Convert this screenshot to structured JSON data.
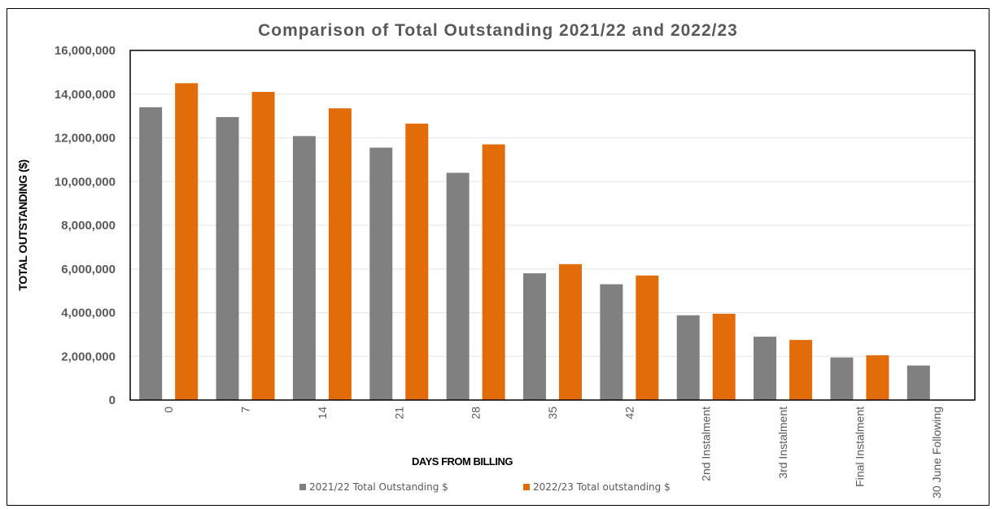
{
  "chart_data": {
    "type": "bar",
    "title": "Comparison of Total Outstanding 2021/22 and 2022/23",
    "xlabel": "DAYS FROM BILLING",
    "ylabel": "TOTAL OUTSTANDING ($)",
    "ylim": [
      0,
      16000000
    ],
    "yticks": [
      "0",
      "2,000,000",
      "4,000,000",
      "6,000,000",
      "8,000,000",
      "10,000,000",
      "12,000,000",
      "14,000,000",
      "16,000,000"
    ],
    "categories": [
      "0",
      "7",
      "14",
      "21",
      "28",
      "35",
      "42",
      "2nd Instalment",
      "3rd Instalment",
      "Final Instalment",
      "30 June Following"
    ],
    "series": [
      {
        "name": "2021/22 Total Outstanding $",
        "color": "#808080",
        "values": [
          13400000,
          12950000,
          12080000,
          11550000,
          10400000,
          5800000,
          5300000,
          3880000,
          2900000,
          1950000,
          1580000
        ]
      },
      {
        "name": "2022/23 Total outstanding $",
        "color": "#E36C0A",
        "values": [
          14500000,
          14100000,
          13350000,
          12650000,
          11700000,
          6220000,
          5700000,
          3950000,
          2750000,
          2050000,
          0
        ]
      }
    ],
    "grid": true,
    "legend": "bottom"
  }
}
